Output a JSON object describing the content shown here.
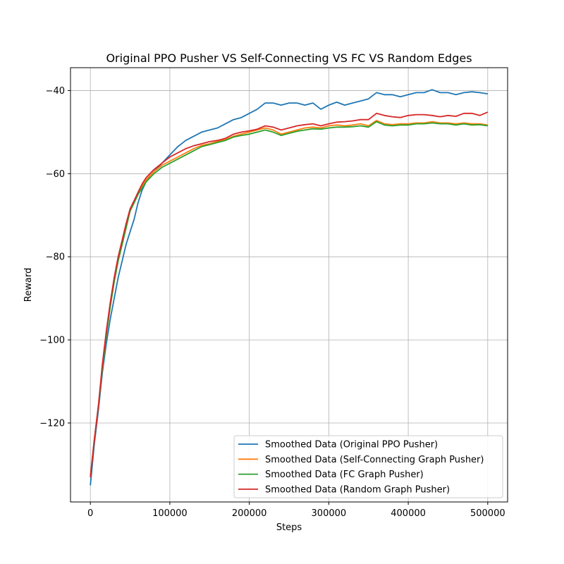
{
  "chart_data": {
    "type": "line",
    "title": "Original PPO Pusher VS Self-Connecting VS FC VS Random Edges",
    "xlabel": "Steps",
    "ylabel": "Reward",
    "xlim": [
      -25000,
      525000
    ],
    "ylim": [
      -139,
      -34.5
    ],
    "xticks": [
      0,
      100000,
      200000,
      300000,
      400000,
      500000
    ],
    "xtick_labels": [
      "0",
      "100000",
      "200000",
      "300000",
      "400000",
      "500000"
    ],
    "yticks": [
      -120,
      -100,
      -80,
      -60,
      -40
    ],
    "ytick_labels": [
      "−120",
      "−100",
      "−80",
      "−60",
      "−40"
    ],
    "grid": true,
    "legend_position": "lower right",
    "series": [
      {
        "name": "Smoothed Data (Original PPO Pusher)",
        "color": "#1f77b4",
        "x": [
          0,
          5000,
          10000,
          15000,
          20000,
          25000,
          30000,
          35000,
          40000,
          45000,
          50000,
          55000,
          60000,
          65000,
          70000,
          75000,
          80000,
          90000,
          100000,
          110000,
          120000,
          130000,
          140000,
          150000,
          160000,
          170000,
          180000,
          190000,
          200000,
          210000,
          220000,
          230000,
          240000,
          250000,
          260000,
          270000,
          280000,
          290000,
          300000,
          310000,
          320000,
          330000,
          340000,
          350000,
          360000,
          370000,
          380000,
          390000,
          400000,
          410000,
          420000,
          430000,
          440000,
          450000,
          460000,
          470000,
          480000,
          490000,
          500000
        ],
        "y": [
          -135,
          -125,
          -117,
          -108,
          -101,
          -95,
          -90,
          -85,
          -81,
          -77,
          -74,
          -71,
          -67,
          -64,
          -62,
          -60.5,
          -59.5,
          -57.5,
          -55.5,
          -53.5,
          -52,
          -51,
          -50,
          -49.5,
          -49,
          -48,
          -47,
          -46.5,
          -45.5,
          -44.5,
          -43,
          -43,
          -43.5,
          -43,
          -43,
          -43.5,
          -43,
          -44.5,
          -43.5,
          -42.8,
          -43.5,
          -43,
          -42.5,
          -42,
          -40.5,
          -41,
          -41,
          -41.5,
          -41,
          -40.5,
          -40.5,
          -39.8,
          -40.5,
          -40.5,
          -41,
          -40.5,
          -40.3,
          -40.5,
          -40.8
        ]
      },
      {
        "name": "Smoothed Data (Self-Connecting Graph Pusher)",
        "color": "#ff7f0e",
        "x": [
          0,
          5000,
          10000,
          15000,
          20000,
          25000,
          30000,
          35000,
          40000,
          45000,
          50000,
          55000,
          60000,
          65000,
          70000,
          75000,
          80000,
          90000,
          100000,
          110000,
          120000,
          130000,
          140000,
          150000,
          160000,
          170000,
          180000,
          190000,
          200000,
          210000,
          220000,
          230000,
          240000,
          250000,
          260000,
          270000,
          280000,
          290000,
          300000,
          310000,
          320000,
          330000,
          340000,
          350000,
          360000,
          370000,
          380000,
          390000,
          400000,
          410000,
          420000,
          430000,
          440000,
          450000,
          460000,
          470000,
          480000,
          490000,
          500000
        ],
        "y": [
          -133,
          -124,
          -116,
          -107,
          -99,
          -92,
          -86,
          -81,
          -77,
          -73,
          -69,
          -67,
          -65,
          -63,
          -61.5,
          -60.5,
          -59.5,
          -58,
          -57,
          -56,
          -55,
          -54,
          -53.2,
          -52.8,
          -52.3,
          -51.8,
          -51,
          -50.5,
          -50,
          -49.5,
          -49,
          -49.5,
          -50.5,
          -50,
          -49.5,
          -49,
          -48.8,
          -49,
          -48.5,
          -48.3,
          -48.5,
          -48.3,
          -48,
          -48.5,
          -47.2,
          -48,
          -48.2,
          -48,
          -48,
          -47.8,
          -47.8,
          -47.5,
          -47.8,
          -47.8,
          -48,
          -47.8,
          -48,
          -48,
          -48.3
        ]
      },
      {
        "name": "Smoothed Data (FC Graph Pusher)",
        "color": "#2ca02c",
        "x": [
          0,
          5000,
          10000,
          15000,
          20000,
          25000,
          30000,
          35000,
          40000,
          45000,
          50000,
          55000,
          60000,
          65000,
          70000,
          75000,
          80000,
          90000,
          100000,
          110000,
          120000,
          130000,
          140000,
          150000,
          160000,
          170000,
          180000,
          190000,
          200000,
          210000,
          220000,
          230000,
          240000,
          250000,
          260000,
          270000,
          280000,
          290000,
          300000,
          310000,
          320000,
          330000,
          340000,
          350000,
          360000,
          370000,
          380000,
          390000,
          400000,
          410000,
          420000,
          430000,
          440000,
          450000,
          460000,
          470000,
          480000,
          490000,
          500000
        ],
        "y": [
          -133,
          -124,
          -116,
          -107,
          -99,
          -92,
          -86,
          -81,
          -77,
          -73,
          -69,
          -67,
          -65,
          -63.5,
          -62,
          -61,
          -60,
          -58.5,
          -57.5,
          -56.5,
          -55.5,
          -54.5,
          -53.5,
          -53,
          -52.5,
          -52,
          -51.2,
          -50.8,
          -50.5,
          -50,
          -49.5,
          -50,
          -50.8,
          -50.3,
          -49.8,
          -49.5,
          -49.2,
          -49.3,
          -49,
          -48.8,
          -48.8,
          -48.7,
          -48.5,
          -48.8,
          -47.5,
          -48.3,
          -48.5,
          -48.3,
          -48.3,
          -48,
          -48,
          -47.8,
          -48,
          -48,
          -48.3,
          -48,
          -48.3,
          -48.2,
          -48.5
        ]
      },
      {
        "name": "Smoothed Data (Random Graph Pusher)",
        "color": "#d62728",
        "x": [
          0,
          5000,
          10000,
          15000,
          20000,
          25000,
          30000,
          35000,
          40000,
          45000,
          50000,
          55000,
          60000,
          65000,
          70000,
          75000,
          80000,
          90000,
          100000,
          110000,
          120000,
          130000,
          140000,
          150000,
          160000,
          170000,
          180000,
          190000,
          200000,
          210000,
          220000,
          230000,
          240000,
          250000,
          260000,
          270000,
          280000,
          290000,
          300000,
          310000,
          320000,
          330000,
          340000,
          350000,
          360000,
          370000,
          380000,
          390000,
          400000,
          410000,
          420000,
          430000,
          440000,
          450000,
          460000,
          470000,
          480000,
          490000,
          500000
        ],
        "y": [
          -133,
          -124,
          -116,
          -106,
          -98,
          -91,
          -85,
          -80,
          -76,
          -72,
          -68.5,
          -66.5,
          -64.5,
          -62.5,
          -61,
          -60,
          -59,
          -57.5,
          -56,
          -55,
          -54,
          -53.3,
          -52.8,
          -52.3,
          -52,
          -51.5,
          -50.5,
          -50,
          -49.7,
          -49.3,
          -48.5,
          -48.8,
          -49.5,
          -49,
          -48.5,
          -48.2,
          -48,
          -48.5,
          -48,
          -47.6,
          -47.5,
          -47.3,
          -47,
          -47,
          -45.5,
          -46,
          -46.3,
          -46.5,
          -46,
          -45.8,
          -45.8,
          -46,
          -46.3,
          -46,
          -46.2,
          -45.5,
          -45.5,
          -46,
          -45.2
        ]
      }
    ]
  }
}
